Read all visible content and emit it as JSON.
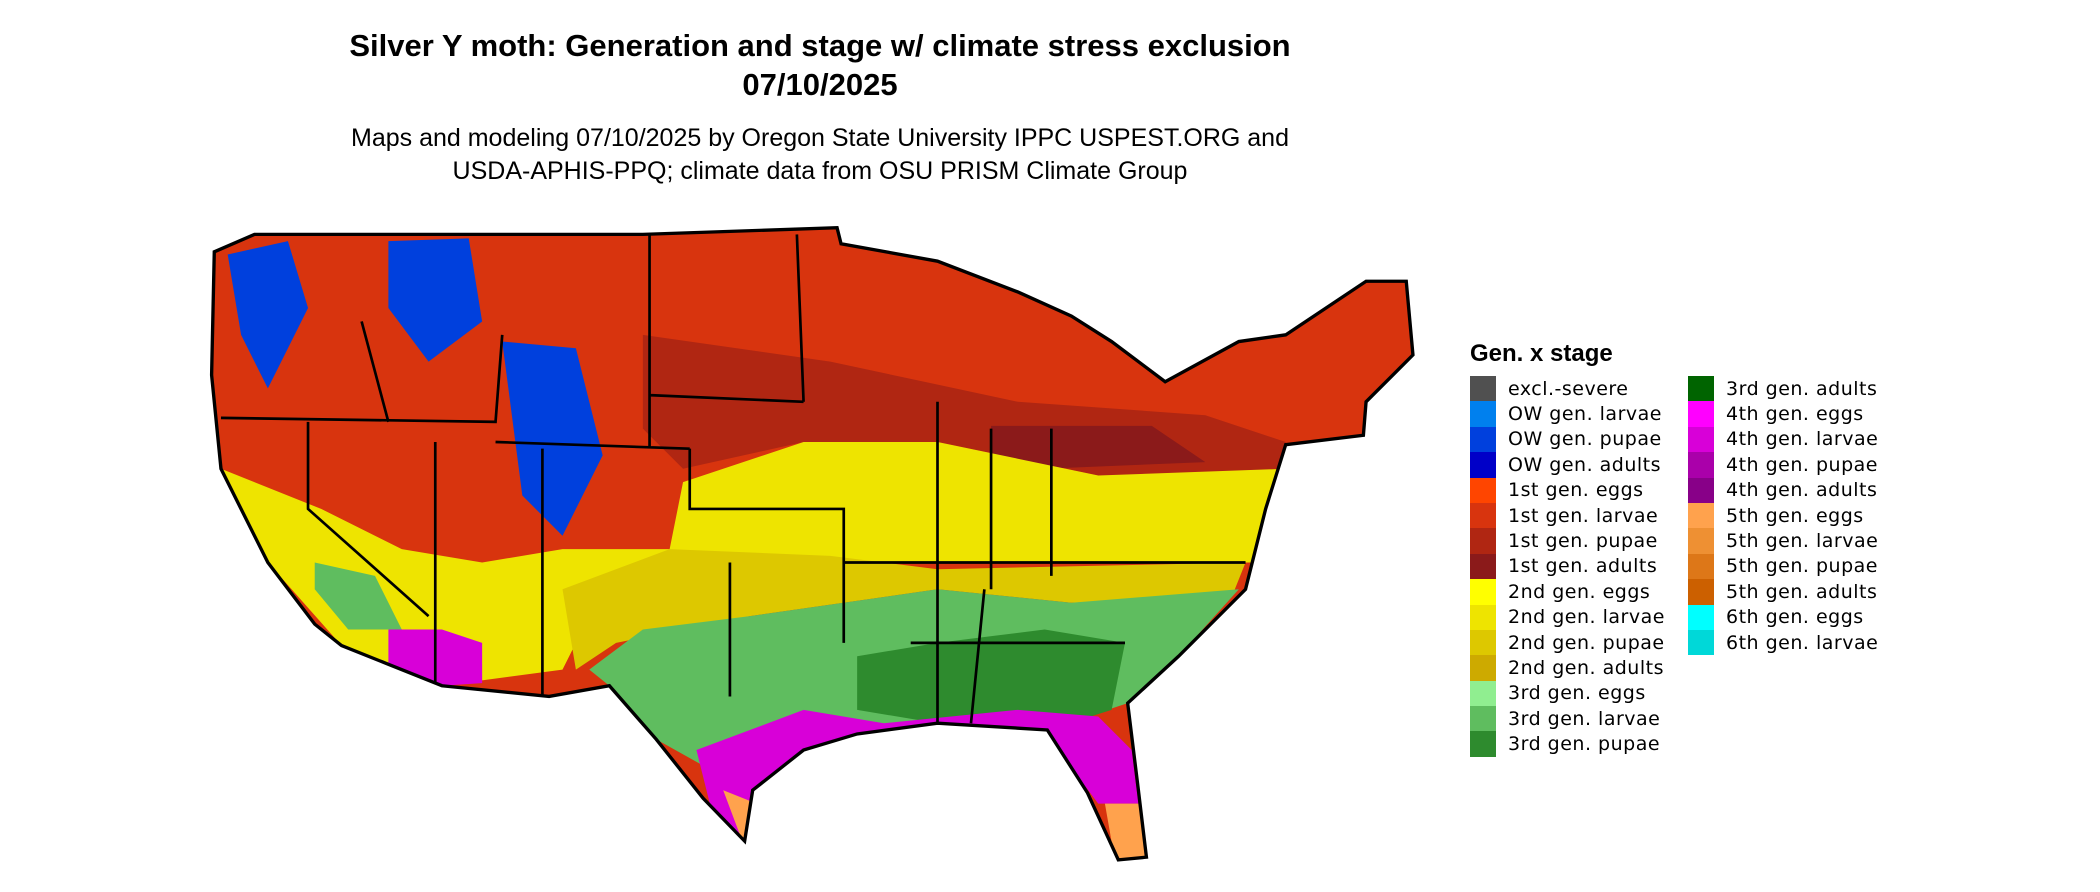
{
  "title_line1": "Silver Y moth: Generation and stage w/ climate stress exclusion",
  "title_line2": "07/10/2025",
  "subtitle_line1": "Maps and modeling 07/10/2025 by Oregon State University IPPC USPEST.ORG and",
  "subtitle_line2": "USDA-APHIS-PPQ; climate data from OSU PRISM Climate Group",
  "legend": {
    "title": "Gen. x stage",
    "items": [
      {
        "label": "excl.-severe",
        "color": "#505050"
      },
      {
        "label": "OW gen. larvae",
        "color": "#0080ee"
      },
      {
        "label": "OW gen. pupae",
        "color": "#0040dd"
      },
      {
        "label": "OW gen. adults",
        "color": "#0000c8"
      },
      {
        "label": "1st gen. eggs",
        "color": "#ff4500"
      },
      {
        "label": "1st gen. larvae",
        "color": "#d8340e"
      },
      {
        "label": "1st gen. pupae",
        "color": "#b02612"
      },
      {
        "label": "1st gen. adults",
        "color": "#8b1a1a"
      },
      {
        "label": "2nd gen. eggs",
        "color": "#ffff00"
      },
      {
        "label": "2nd gen. larvae",
        "color": "#eee400"
      },
      {
        "label": "2nd gen. pupae",
        "color": "#ddc800"
      },
      {
        "label": "2nd gen. adults",
        "color": "#cdaa00"
      },
      {
        "label": "3rd gen. eggs",
        "color": "#90ee90"
      },
      {
        "label": "3rd gen. larvae",
        "color": "#5fbd5f"
      },
      {
        "label": "3rd gen. pupae",
        "color": "#2e8b2e"
      },
      {
        "label": "3rd gen. adults",
        "color": "#006400"
      },
      {
        "label": "4th gen. eggs",
        "color": "#ff00ff"
      },
      {
        "label": "4th gen. larvae",
        "color": "#d800d8"
      },
      {
        "label": "4th gen. pupae",
        "color": "#aa00aa"
      },
      {
        "label": "4th gen. adults",
        "color": "#880088"
      },
      {
        "label": "5th gen. eggs",
        "color": "#ffa24d"
      },
      {
        "label": "5th gen. larvae",
        "color": "#ee9033"
      },
      {
        "label": "5th gen. pupae",
        "color": "#dd7718"
      },
      {
        "label": "5th gen. adults",
        "color": "#cc6000"
      },
      {
        "label": "6th gen. eggs",
        "color": "#00ffff"
      },
      {
        "label": "6th gen. larvae",
        "color": "#00d8d8"
      }
    ]
  }
}
